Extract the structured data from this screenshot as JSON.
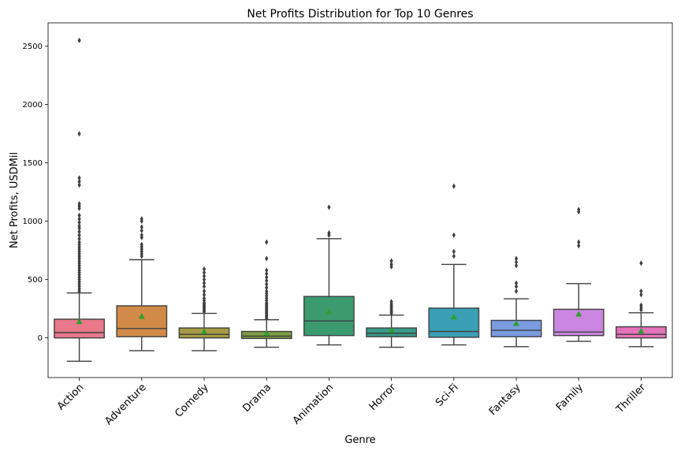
{
  "chart_data": {
    "type": "box",
    "title": "Net Profits Distribution for Top 10 Genres",
    "xlabel": "Genre",
    "ylabel": "Net Profits, USDMil",
    "ylim": [
      -340,
      2700
    ],
    "yticks": [
      0,
      500,
      1000,
      1500,
      2000,
      2500
    ],
    "grid": false,
    "mean_marker": "green triangle",
    "categories": [
      "Action",
      "Adventure",
      "Comedy",
      "Drama",
      "Animation",
      "Horror",
      "Sci-Fi",
      "Fantasy",
      "Family",
      "Thriller"
    ],
    "boxes": [
      {
        "category": "Action",
        "color": "#e8788a",
        "whisker_low": -200,
        "q1": 0,
        "median": 45,
        "q3": 160,
        "whisker_high": 385,
        "mean": 140,
        "outliers": [
          2550,
          1750,
          1370,
          1340,
          1310,
          1150,
          1130,
          1110,
          1050,
          1020,
          990,
          960,
          940,
          910,
          880,
          850,
          820,
          800,
          780,
          760,
          740,
          720,
          700,
          680,
          660,
          640,
          620,
          600,
          580,
          560,
          540,
          520,
          500,
          480,
          460,
          440,
          420,
          400
        ]
      },
      {
        "category": "Adventure",
        "color": "#d18a48",
        "whisker_low": -110,
        "q1": 10,
        "median": 80,
        "q3": 275,
        "whisker_high": 670,
        "mean": 185,
        "outliers": [
          1020,
          1000,
          950,
          920,
          880,
          860,
          800,
          780,
          760,
          740,
          720,
          700
        ]
      },
      {
        "category": "Comedy",
        "color": "#a89a43",
        "whisker_low": -110,
        "q1": 0,
        "median": 30,
        "q3": 85,
        "whisker_high": 210,
        "mean": 55,
        "outliers": [
          590,
          560,
          530,
          500,
          470,
          440,
          400,
          370,
          340,
          320,
          300,
          290,
          280,
          270,
          260,
          250,
          240,
          230,
          225
        ]
      },
      {
        "category": "Drama",
        "color": "#7e9c43",
        "whisker_low": -80,
        "q1": -5,
        "median": 15,
        "q3": 55,
        "whisker_high": 155,
        "mean": 40,
        "outliers": [
          820,
          680,
          580,
          550,
          520,
          490,
          460,
          430,
          400,
          380,
          360,
          340,
          320,
          300,
          290,
          280,
          270,
          260,
          250,
          240,
          230,
          220,
          210,
          200,
          190,
          180,
          170,
          165
        ]
      },
      {
        "category": "Animation",
        "color": "#3b9b6e",
        "whisker_low": -60,
        "q1": 20,
        "median": 145,
        "q3": 355,
        "whisker_high": 850,
        "mean": 225,
        "outliers": [
          1120,
          900,
          880
        ]
      },
      {
        "category": "Horror",
        "color": "#3a9a8a",
        "whisker_low": -80,
        "q1": 10,
        "median": 40,
        "q3": 85,
        "whisker_high": 195,
        "mean": 65,
        "outliers": [
          660,
          630,
          610,
          310,
          290,
          275,
          260,
          245,
          230,
          220,
          210
        ]
      },
      {
        "category": "Sci-Fi",
        "color": "#3a9fb4",
        "whisker_low": -60,
        "q1": 5,
        "median": 55,
        "q3": 255,
        "whisker_high": 630,
        "mean": 180,
        "outliers": [
          1300,
          880,
          740,
          700
        ]
      },
      {
        "category": "Fantasy",
        "color": "#7a9be0",
        "whisker_low": -75,
        "q1": 10,
        "median": 65,
        "q3": 150,
        "whisker_high": 335,
        "mean": 125,
        "outliers": [
          680,
          650,
          620,
          470,
          440,
          400
        ]
      },
      {
        "category": "Family",
        "color": "#ca86e0",
        "whisker_low": -30,
        "q1": 20,
        "median": 50,
        "q3": 245,
        "whisker_high": 465,
        "mean": 205,
        "outliers": [
          1100,
          1080,
          820,
          790
        ]
      },
      {
        "category": "Thriller",
        "color": "#e472b8",
        "whisker_low": -75,
        "q1": 0,
        "median": 30,
        "q3": 95,
        "whisker_high": 215,
        "mean": 60,
        "outliers": [
          640,
          400,
          370,
          280,
          260,
          240
        ]
      }
    ]
  }
}
